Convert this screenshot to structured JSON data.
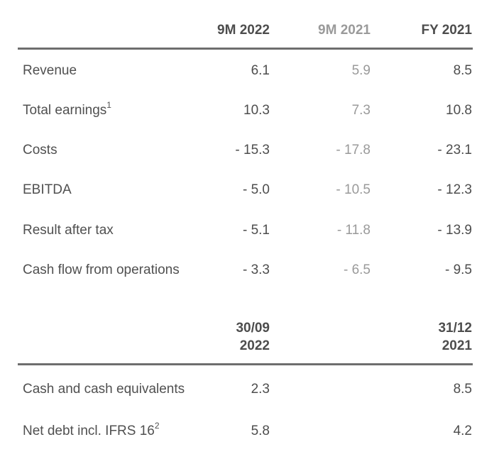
{
  "header1": {
    "col1": "9M 2022",
    "col2": "9M 2021",
    "col3": "FY 2021"
  },
  "rows": [
    {
      "label": "Revenue",
      "sup": "",
      "v1": "6.1",
      "v2": "5.9",
      "v3": "8.5"
    },
    {
      "label": "Total earnings",
      "sup": "1",
      "v1": "10.3",
      "v2": "7.3",
      "v3": "10.8"
    },
    {
      "label": "Costs",
      "sup": "",
      "v1": "- 15.3",
      "v2": "- 17.8",
      "v3": "- 23.1"
    },
    {
      "label": "EBITDA",
      "sup": "",
      "v1": "- 5.0",
      "v2": "- 10.5",
      "v3": "- 12.3"
    },
    {
      "label": "Result after tax",
      "sup": "",
      "v1": "- 5.1",
      "v2": "- 11.8",
      "v3": "- 13.9"
    },
    {
      "label": "Cash flow from operations",
      "sup": "",
      "v1": "- 3.3",
      "v2": "- 6.5",
      "v3": "- 9.5"
    }
  ],
  "header2": {
    "col1_line1": "30/09",
    "col1_line2": "2022",
    "col3_line1": "31/12",
    "col3_line2": "2021"
  },
  "rows2": [
    {
      "label": "Cash and cash equivalents",
      "sup": "",
      "v1": "2.3",
      "v3": "8.5"
    },
    {
      "label": "Net debt incl. IFRS 16",
      "sup": "2",
      "v1": "5.8",
      "v3": "4.2"
    }
  ]
}
